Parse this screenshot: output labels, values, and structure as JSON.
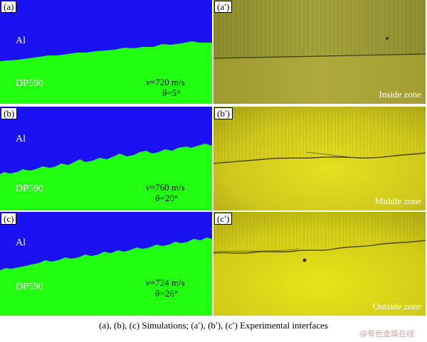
{
  "panels": {
    "a": {
      "tag": "(a)",
      "top_label": "Al",
      "bottom_label": "DP590",
      "v_sym": "v",
      "v_val": "=720 m/s",
      "theta_sym": "θ",
      "theta_val": "=5°"
    },
    "b": {
      "tag": "(b)",
      "top_label": "Al",
      "bottom_label": "DP590",
      "v_sym": "v",
      "v_val": "=760 m/s",
      "theta_sym": "θ",
      "theta_val": "=20°"
    },
    "c": {
      "tag": "(c)",
      "top_label": "Al",
      "bottom_label": "DP590",
      "v_sym": "v",
      "v_val": "=724 m/s",
      "theta_sym": "θ",
      "theta_val": "=26°"
    },
    "ap": {
      "tag": "(a′)",
      "zone": "Inside zone"
    },
    "bp": {
      "tag": "(b′)",
      "zone": "Middle zone"
    },
    "cp": {
      "tag": "(c′)",
      "zone": "Outside zone"
    }
  },
  "colors": {
    "aluminum": "#1a12f5",
    "steel": "#22ff10"
  },
  "caption": "(a), (b), (c) Simulations; (a′), (b′), (c′) Experimental interfaces",
  "watermark": "@有色金属在线"
}
